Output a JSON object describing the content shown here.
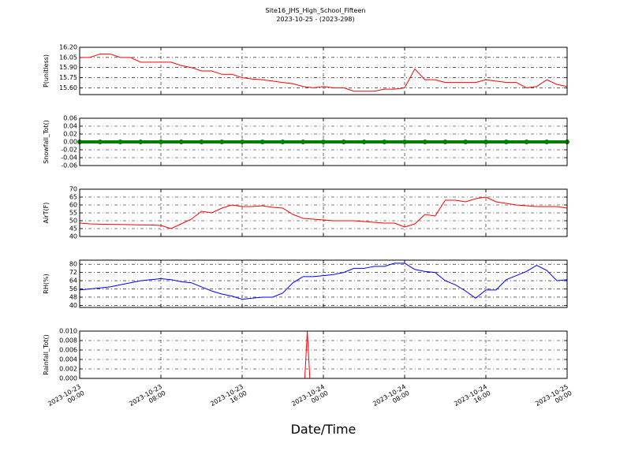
{
  "title": "Site16_JHS_High_School_Fifteen",
  "subtitle": "2023-10-25 - (2023-298)",
  "xlabel": "Date/Time",
  "chart_data": [
    {
      "type": "line",
      "ylabel": "P(unitless)",
      "grid": true,
      "xlim": [
        "2023-10-23 00:00",
        "2023-10-25 00:00"
      ],
      "xticks": [
        "2023-10-23 00:00",
        "2023-10-23 08:00",
        "2023-10-23 16:00",
        "2023-10-24 00:00",
        "2023-10-24 08:00",
        "2023-10-24 16:00",
        "2023-10-25 00:00"
      ],
      "ylim": [
        15.5,
        16.2
      ],
      "yticks": [
        {
          "value": 15.6,
          "label": "15.60"
        },
        15.75,
        {
          "value": 15.9,
          "label": "15.90"
        },
        16.05,
        {
          "value": 16.2,
          "label": "16.20"
        }
      ],
      "x": [
        "2023-10-23 00:00",
        "2023-10-23 01:00",
        "2023-10-23 02:00",
        "2023-10-23 03:00",
        "2023-10-23 04:00",
        "2023-10-23 05:00",
        "2023-10-23 06:00",
        "2023-10-23 07:00",
        "2023-10-23 08:00",
        "2023-10-23 09:00",
        "2023-10-23 10:00",
        "2023-10-23 11:00",
        "2023-10-23 12:00",
        "2023-10-23 13:00",
        "2023-10-23 14:00",
        "2023-10-23 15:00",
        "2023-10-23 16:00",
        "2023-10-23 17:00",
        "2023-10-23 18:00",
        "2023-10-23 19:00",
        "2023-10-23 20:00",
        "2023-10-23 21:00",
        "2023-10-23 22:00",
        "2023-10-23 23:00",
        "2023-10-24 00:00",
        "2023-10-24 01:00",
        "2023-10-24 02:00",
        "2023-10-24 03:00",
        "2023-10-24 04:00",
        "2023-10-24 05:00",
        "2023-10-24 06:00",
        "2023-10-24 07:00",
        "2023-10-24 08:00",
        "2023-10-24 09:00",
        "2023-10-24 10:00",
        "2023-10-24 11:00",
        "2023-10-24 12:00",
        "2023-10-24 13:00",
        "2023-10-24 14:00",
        "2023-10-24 15:00",
        "2023-10-24 16:00",
        "2023-10-24 17:00",
        "2023-10-24 18:00",
        "2023-10-24 19:00",
        "2023-10-24 20:00",
        "2023-10-24 21:00",
        "2023-10-24 22:00",
        "2023-10-24 23:00",
        "2023-10-25 00:00"
      ],
      "series": [
        {
          "color": "#ff0000",
          "values": [
            16.05,
            16.05,
            16.1,
            16.1,
            16.05,
            16.05,
            15.98,
            15.98,
            15.98,
            15.98,
            15.93,
            15.9,
            15.85,
            15.85,
            15.8,
            15.8,
            15.75,
            15.73,
            15.72,
            15.7,
            15.68,
            15.66,
            15.62,
            15.6,
            15.62,
            15.6,
            15.6,
            15.55,
            15.55,
            15.55,
            15.58,
            15.58,
            15.6,
            15.88,
            15.72,
            15.72,
            15.68,
            15.68,
            15.68,
            15.68,
            15.72,
            15.7,
            15.68,
            15.68,
            15.6,
            15.62,
            15.72,
            15.65,
            15.62
          ]
        }
      ]
    },
    {
      "type": "line",
      "ylabel": "Snowfall_Tot()",
      "grid": true,
      "marker": true,
      "xlim": [
        "2023-10-23 00:00",
        "2023-10-25 00:00"
      ],
      "xticks": [
        "2023-10-23 00:00",
        "2023-10-23 08:00",
        "2023-10-23 16:00",
        "2023-10-24 00:00",
        "2023-10-24 08:00",
        "2023-10-24 16:00",
        "2023-10-25 00:00"
      ],
      "ylim": [
        -0.06,
        0.06
      ],
      "yticks": [
        -0.06,
        -0.04,
        -0.02,
        {
          "value": 0,
          "label": "0.00"
        },
        0.02,
        0.04,
        0.06
      ],
      "x": [
        "2023-10-23 00:00",
        "2023-10-23 02:00",
        "2023-10-23 04:00",
        "2023-10-23 06:00",
        "2023-10-23 08:00",
        "2023-10-23 10:00",
        "2023-10-23 12:00",
        "2023-10-23 14:00",
        "2023-10-23 16:00",
        "2023-10-23 18:00",
        "2023-10-23 20:00",
        "2023-10-23 22:00",
        "2023-10-24 00:00",
        "2023-10-24 02:00",
        "2023-10-24 04:00",
        "2023-10-24 06:00",
        "2023-10-24 08:00",
        "2023-10-24 10:00",
        "2023-10-24 12:00",
        "2023-10-24 14:00",
        "2023-10-24 16:00",
        "2023-10-24 18:00",
        "2023-10-24 20:00",
        "2023-10-24 22:00",
        "2023-10-25 00:00"
      ],
      "series": [
        {
          "color": "#008000",
          "values": [
            0,
            0,
            0,
            0,
            0,
            0,
            0,
            0,
            0,
            0,
            0,
            0,
            0,
            0,
            0,
            0,
            0,
            0,
            0,
            0,
            0,
            0,
            0,
            0,
            0
          ]
        }
      ]
    },
    {
      "type": "line",
      "ylabel": "AirT(F)",
      "grid": true,
      "xlim": [
        "2023-10-23 00:00",
        "2023-10-25 00:00"
      ],
      "xticks": [
        "2023-10-23 00:00",
        "2023-10-23 08:00",
        "2023-10-23 16:00",
        "2023-10-24 00:00",
        "2023-10-24 08:00",
        "2023-10-24 16:00",
        "2023-10-25 00:00"
      ],
      "ylim": [
        40,
        70
      ],
      "yticks": [
        40,
        45,
        50,
        55,
        60,
        65,
        70
      ],
      "x": [
        "2023-10-23 00:00",
        "2023-10-23 01:00",
        "2023-10-23 02:00",
        "2023-10-23 03:00",
        "2023-10-23 04:00",
        "2023-10-23 05:00",
        "2023-10-23 06:00",
        "2023-10-23 07:00",
        "2023-10-23 08:00",
        "2023-10-23 09:00",
        "2023-10-23 10:00",
        "2023-10-23 11:00",
        "2023-10-23 12:00",
        "2023-10-23 13:00",
        "2023-10-23 14:00",
        "2023-10-23 15:00",
        "2023-10-23 16:00",
        "2023-10-23 17:00",
        "2023-10-23 18:00",
        "2023-10-23 19:00",
        "2023-10-23 20:00",
        "2023-10-23 21:00",
        "2023-10-23 22:00",
        "2023-10-23 23:00",
        "2023-10-24 00:00",
        "2023-10-24 01:00",
        "2023-10-24 02:00",
        "2023-10-24 03:00",
        "2023-10-24 04:00",
        "2023-10-24 05:00",
        "2023-10-24 06:00",
        "2023-10-24 07:00",
        "2023-10-24 08:00",
        "2023-10-24 09:00",
        "2023-10-24 10:00",
        "2023-10-24 11:00",
        "2023-10-24 12:00",
        "2023-10-24 13:00",
        "2023-10-24 14:00",
        "2023-10-24 15:00",
        "2023-10-24 16:00",
        "2023-10-24 17:00",
        "2023-10-24 18:00",
        "2023-10-24 19:00",
        "2023-10-24 20:00",
        "2023-10-24 21:00",
        "2023-10-24 22:00",
        "2023-10-24 23:00",
        "2023-10-25 00:00"
      ],
      "series": [
        {
          "color": "#ff0000",
          "values": [
            48.5,
            48,
            47.8,
            47.7,
            47.6,
            47.5,
            47.4,
            47.3,
            47,
            45,
            48,
            51,
            56,
            55,
            58,
            60,
            59,
            59,
            59.5,
            58.5,
            58,
            54,
            51.5,
            51,
            50.5,
            50,
            50,
            50,
            49.5,
            49,
            48.5,
            48.5,
            46,
            48,
            54,
            53,
            63,
            63,
            62,
            64,
            65,
            62,
            61,
            60,
            59.5,
            59,
            59,
            59,
            58
          ]
        }
      ]
    },
    {
      "type": "line",
      "ylabel": "RH(%)",
      "grid": true,
      "xlim": [
        "2023-10-23 00:00",
        "2023-10-25 00:00"
      ],
      "xticks": [
        "2023-10-23 00:00",
        "2023-10-23 08:00",
        "2023-10-23 16:00",
        "2023-10-24 00:00",
        "2023-10-24 08:00",
        "2023-10-24 16:00",
        "2023-10-25 00:00"
      ],
      "ylim": [
        38,
        84
      ],
      "yticks": [
        40,
        48,
        56,
        64,
        72,
        80
      ],
      "x": [
        "2023-10-23 00:00",
        "2023-10-23 01:00",
        "2023-10-23 02:00",
        "2023-10-23 03:00",
        "2023-10-23 04:00",
        "2023-10-23 05:00",
        "2023-10-23 06:00",
        "2023-10-23 07:00",
        "2023-10-23 08:00",
        "2023-10-23 09:00",
        "2023-10-23 10:00",
        "2023-10-23 11:00",
        "2023-10-23 12:00",
        "2023-10-23 13:00",
        "2023-10-23 14:00",
        "2023-10-23 15:00",
        "2023-10-23 16:00",
        "2023-10-23 17:00",
        "2023-10-23 18:00",
        "2023-10-23 19:00",
        "2023-10-23 20:00",
        "2023-10-23 21:00",
        "2023-10-23 22:00",
        "2023-10-23 23:00",
        "2023-10-24 00:00",
        "2023-10-24 01:00",
        "2023-10-24 02:00",
        "2023-10-24 03:00",
        "2023-10-24 04:00",
        "2023-10-24 05:00",
        "2023-10-24 06:00",
        "2023-10-24 07:00",
        "2023-10-24 08:00",
        "2023-10-24 09:00",
        "2023-10-24 10:00",
        "2023-10-24 11:00",
        "2023-10-24 12:00",
        "2023-10-24 13:00",
        "2023-10-24 14:00",
        "2023-10-24 15:00",
        "2023-10-24 16:00",
        "2023-10-24 17:00",
        "2023-10-24 18:00",
        "2023-10-24 19:00",
        "2023-10-24 20:00",
        "2023-10-24 21:00",
        "2023-10-24 22:00",
        "2023-10-24 23:00",
        "2023-10-25 00:00"
      ],
      "series": [
        {
          "color": "#0000ff",
          "values": [
            55,
            56,
            57,
            58,
            60,
            62,
            64,
            65,
            66,
            65,
            63,
            62,
            58,
            54,
            51,
            49,
            46,
            47,
            48,
            48,
            52,
            62,
            68,
            68,
            69,
            70,
            72,
            76,
            76,
            78,
            78,
            81,
            81,
            75,
            73,
            72,
            64,
            60,
            54,
            47,
            55,
            55,
            65,
            69,
            73,
            79,
            74,
            64,
            65
          ]
        }
      ]
    },
    {
      "type": "line",
      "ylabel": "Rainfall_Tot()",
      "grid": true,
      "xlim": [
        "2023-10-23 00:00",
        "2023-10-25 00:00"
      ],
      "xticks": [
        {
          "value": "2023-10-23 00:00",
          "label": "2023-10-23 00:00"
        },
        {
          "value": "2023-10-23 08:00",
          "label": "2023-10-23 08:00"
        },
        {
          "value": "2023-10-23 16:00",
          "label": "2023-10-23 16:00"
        },
        {
          "value": "2023-10-24 00:00",
          "label": "2023-10-24 00:00"
        },
        {
          "value": "2023-10-24 08:00",
          "label": "2023-10-24 08:00"
        },
        {
          "value": "2023-10-24 16:00",
          "label": "2023-10-24 16:00"
        },
        {
          "value": "2023-10-25 00:00",
          "label": "2023-10-25 00:00"
        }
      ],
      "ylim": [
        0,
        0.01
      ],
      "yticks": [
        {
          "value": 0,
          "label": "0.000"
        },
        0.002,
        0.004,
        0.006,
        0.008,
        {
          "value": 0.01,
          "label": "0.010"
        }
      ],
      "x": [
        "2023-10-23 00:00",
        "2023-10-23 22:10",
        "2023-10-23 22:25",
        "2023-10-23 22:40",
        "2023-10-25 00:00"
      ],
      "series": [
        {
          "color": "#ff0000",
          "values": [
            0,
            0,
            0.01,
            0,
            0
          ]
        }
      ]
    }
  ]
}
